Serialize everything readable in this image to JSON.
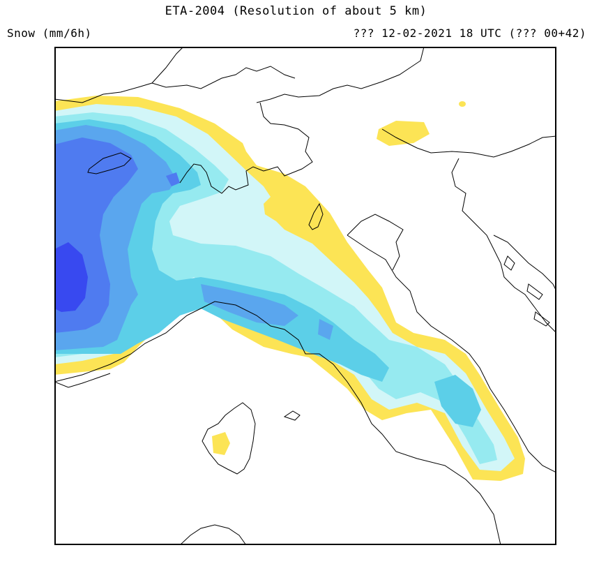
{
  "header": {
    "title": "ETA-2004 (Resolution of about 5 km)",
    "variable": "Snow (mm/6h)",
    "valid_time": "??? 12-02-2021 18 UTC (??? 00+42)"
  },
  "legend_colors": {
    "level1": "#fce455",
    "level2": "#d2f6f8",
    "level3": "#96eaf0",
    "level4": "#5ccfe8",
    "level5": "#5aa6ee",
    "level6": "#4f7bf0",
    "level7": "#3849f0"
  },
  "map": {
    "region": "Northern Italy and the Alps",
    "field": "snowfall"
  }
}
